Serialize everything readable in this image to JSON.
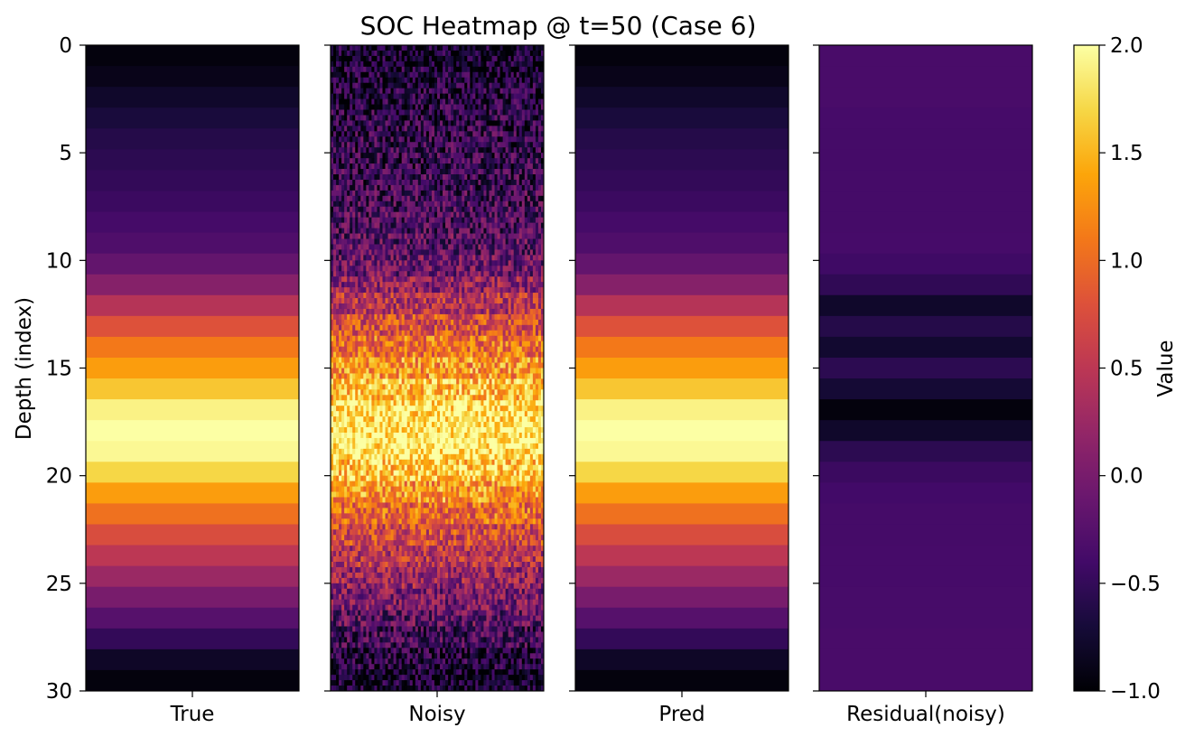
{
  "chart_data": {
    "type": "heatmap",
    "title": "SOC Heatmap @ t=50 (Case 6)",
    "ylabel": "Depth (index)",
    "ylim": [
      30,
      0
    ],
    "yticks": [
      0,
      5,
      10,
      15,
      20,
      25,
      30
    ],
    "colormap": "inferno",
    "colorbar": {
      "label": "Value",
      "range": [
        -1.0,
        2.0
      ],
      "ticks": [
        "2.0",
        "1.5",
        "1.0",
        "0.5",
        "0.0",
        "−0.5",
        "−1.0"
      ],
      "tick_values": [
        2.0,
        1.5,
        1.0,
        0.5,
        0.0,
        -0.5,
        -1.0
      ]
    },
    "panels": [
      {
        "label": "True",
        "values": [
          -0.95,
          -0.88,
          -0.78,
          -0.68,
          -0.6,
          -0.55,
          -0.5,
          -0.45,
          -0.38,
          -0.3,
          -0.15,
          0.1,
          0.45,
          0.8,
          1.1,
          1.35,
          1.6,
          1.9,
          2.0,
          1.95,
          1.7,
          1.35,
          1.05,
          0.75,
          0.5,
          0.25,
          0.0,
          -0.25,
          -0.5,
          -0.8,
          -0.95
        ]
      },
      {
        "label": "Noisy",
        "values": [
          -0.8,
          -0.7,
          -0.6,
          -0.55,
          -0.5,
          -0.48,
          -0.45,
          -0.4,
          -0.35,
          -0.25,
          -0.1,
          0.15,
          0.45,
          0.75,
          1.05,
          1.3,
          1.55,
          1.8,
          1.9,
          1.85,
          1.6,
          1.3,
          1.0,
          0.7,
          0.45,
          0.2,
          0.0,
          -0.2,
          -0.4,
          -0.65,
          -0.8
        ],
        "noise": 0.55
      },
      {
        "label": "Pred",
        "values": [
          -0.95,
          -0.88,
          -0.78,
          -0.68,
          -0.6,
          -0.55,
          -0.5,
          -0.45,
          -0.38,
          -0.3,
          -0.15,
          0.1,
          0.45,
          0.8,
          1.1,
          1.35,
          1.6,
          1.9,
          2.0,
          1.95,
          1.7,
          1.35,
          1.05,
          0.75,
          0.5,
          0.25,
          0.0,
          -0.25,
          -0.5,
          -0.8,
          -0.95
        ]
      },
      {
        "label": "Residual(noisy)",
        "values": [
          -0.35,
          -0.35,
          -0.35,
          -0.37,
          -0.38,
          -0.38,
          -0.38,
          -0.38,
          -0.38,
          -0.37,
          -0.42,
          -0.52,
          -0.78,
          -0.6,
          -0.75,
          -0.55,
          -0.72,
          -0.95,
          -0.78,
          -0.55,
          -0.45,
          -0.4,
          -0.38,
          -0.38,
          -0.37,
          -0.37,
          -0.36,
          -0.36,
          -0.35,
          -0.35,
          -0.35
        ]
      }
    ]
  }
}
